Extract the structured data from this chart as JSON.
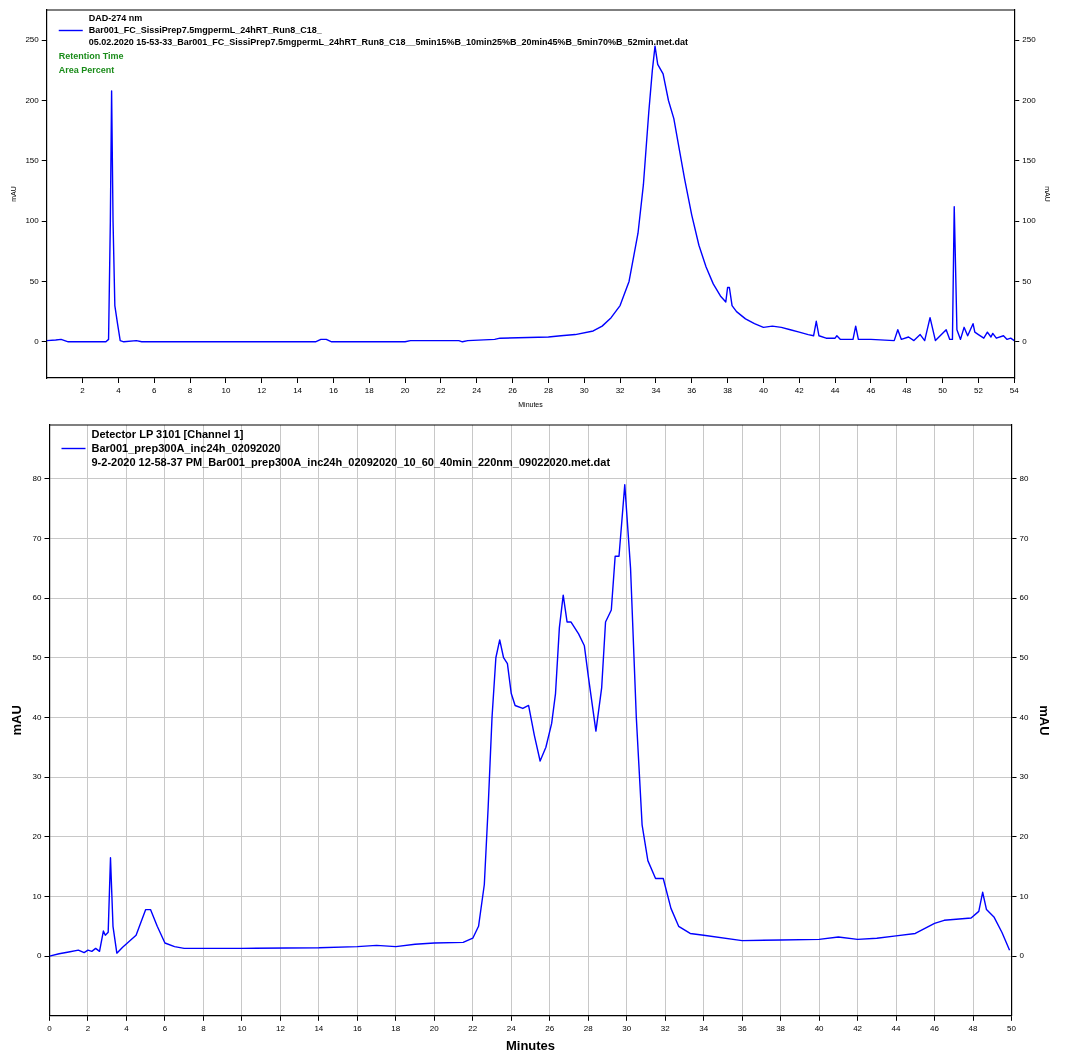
{
  "chart_data": [
    {
      "type": "line",
      "legend_title": "DAD-274 nm",
      "xlabel": "Minutes",
      "ylabel": "mAU",
      "y2label": "mAU",
      "legend": "top left",
      "marker": "none",
      "grid": false,
      "annotations": [
        "Retention Time",
        "Area Percent"
      ],
      "xlim": [
        0,
        54
      ],
      "xticks": [
        2,
        4,
        6,
        8,
        10,
        12,
        14,
        16,
        18,
        20,
        22,
        24,
        26,
        28,
        30,
        32,
        34,
        36,
        38,
        40,
        42,
        44,
        46,
        48,
        50,
        52,
        54
      ],
      "ylim": [
        -30,
        275
      ],
      "yticks": [
        0,
        50,
        100,
        150,
        200,
        250
      ],
      "y2lim": [
        -30,
        275
      ],
      "y2ticks": [
        0,
        50,
        100,
        150,
        200,
        250
      ],
      "series": [
        {
          "name": "Bar001_FC_SissiPrep7.5mgpermL_24hRT_Run8_C18_\n05.02.2020 15-53-33_Bar001_FC_SissiPrep7.5mgpermL_24hRT_Run8_C18__5min15%B_10min25%B_20min45%B_5min70%B_52min.met.dat",
          "color": "#0000ff",
          "x": [
            0,
            0.5,
            0.8,
            1.2,
            3.3,
            3.45,
            3.55,
            3.62,
            3.7,
            3.8,
            3.95,
            4.1,
            4.3,
            5,
            5.3,
            15,
            15.3,
            15.6,
            15.9,
            20,
            20.3,
            23,
            23.2,
            23.5,
            25,
            25.3,
            28,
            28.7,
            29.5,
            30.5,
            31,
            31.5,
            32,
            32.5,
            33,
            33.3,
            33.6,
            33.8,
            33.95,
            34.1,
            34.4,
            34.7,
            35,
            35.3,
            35.6,
            36,
            36.4,
            36.8,
            37.2,
            37.6,
            37.9,
            38,
            38.1,
            38.25,
            38.5,
            39,
            39.5,
            40,
            40.5,
            41,
            41.5,
            42,
            42.5,
            42.8,
            42.95,
            43.1,
            43.5,
            44,
            44.1,
            44.3,
            45,
            45.15,
            45.3,
            46,
            47.3,
            47.5,
            47.7,
            48.1,
            48.4,
            48.75,
            49,
            49.3,
            49.6,
            50.2,
            50.4,
            50.55,
            50.65,
            50.8,
            51,
            51.2,
            51.4,
            51.7,
            51.8,
            52,
            52.3,
            52.5,
            52.7,
            52.8,
            53,
            53.4,
            53.6,
            53.8,
            54
          ],
          "values": [
            1,
            1.5,
            2,
            0,
            0,
            2,
            100,
            208,
            100,
            30,
            15,
            1,
            0,
            1,
            0,
            0,
            2,
            2,
            0,
            0,
            1,
            1,
            0,
            1,
            2,
            3,
            4,
            5,
            6,
            9,
            13,
            20,
            30,
            50,
            90,
            130,
            190,
            225,
            245,
            230,
            222,
            200,
            185,
            160,
            135,
            105,
            80,
            62,
            48,
            38,
            33,
            45,
            45,
            30,
            25,
            19,
            15,
            12,
            13,
            12,
            10,
            8,
            6,
            5,
            17,
            5,
            3,
            3,
            5,
            2,
            2,
            13,
            2,
            2,
            1,
            10,
            2,
            4,
            1,
            6,
            1,
            20,
            1,
            10,
            2,
            2,
            112,
            10,
            2,
            12,
            5,
            15,
            8,
            6,
            3,
            8,
            4,
            7,
            3,
            5,
            2,
            3,
            1
          ]
        }
      ]
    },
    {
      "type": "line",
      "legend_title": "Detector LP 3101 [Channel 1]",
      "xlabel": "Minutes",
      "ylabel": "mAU",
      "y2label": "mAU",
      "legend": "top left",
      "marker": "none",
      "grid": true,
      "xlim": [
        0,
        50
      ],
      "xticks": [
        0,
        2,
        4,
        6,
        8,
        10,
        12,
        14,
        16,
        18,
        20,
        22,
        24,
        26,
        28,
        30,
        32,
        34,
        36,
        38,
        40,
        42,
        44,
        46,
        48,
        50
      ],
      "ylim": [
        -10,
        89
      ],
      "yticks": [
        0,
        10,
        20,
        30,
        40,
        50,
        60,
        70,
        80
      ],
      "y2lim": [
        -10,
        89
      ],
      "y2ticks": [
        0,
        10,
        20,
        30,
        40,
        50,
        60,
        70,
        80
      ],
      "series": [
        {
          "name": "Bar001_prep300A_inc24h_02092020\n9-2-2020 12-58-37 PM_Bar001_prep300A_inc24h_02092020_10_60_40min_220nm_09022020.met.dat",
          "color": "#0000ff",
          "x": [
            0,
            0.5,
            1,
            1.5,
            1.8,
            2,
            2.2,
            2.4,
            2.6,
            2.8,
            2.9,
            3.05,
            3.17,
            3.3,
            3.5,
            3.8,
            4.5,
            5,
            5.25,
            5.6,
            6,
            6.5,
            7,
            10,
            14,
            16,
            17,
            18,
            19,
            20,
            21.5,
            22,
            22.3,
            22.6,
            22.8,
            23,
            23.2,
            23.4,
            23.6,
            23.8,
            24,
            24.2,
            24.6,
            24.9,
            25.2,
            25.5,
            25.8,
            26.1,
            26.3,
            26.5,
            26.7,
            26.9,
            27.1,
            27.5,
            27.8,
            28,
            28.4,
            28.7,
            28.9,
            29.2,
            29.4,
            29.6,
            29.9,
            30.2,
            30.5,
            30.8,
            31.1,
            31.5,
            31.9,
            32.3,
            32.7,
            33.3,
            34,
            36,
            38,
            40,
            41,
            42,
            43,
            44,
            45,
            46,
            46.5,
            47.9,
            48.3,
            48.5,
            48.7,
            49.1,
            49.5,
            49.9
          ],
          "values": [
            0,
            0.4,
            0.7,
            1,
            0.6,
            1,
            0.8,
            1.3,
            0.8,
            4.2,
            3.5,
            4,
            16.5,
            5,
            0.5,
            1.5,
            3.5,
            7.8,
            7.8,
            5,
            2.2,
            1.6,
            1.3,
            1.3,
            1.4,
            1.6,
            1.8,
            1.6,
            2,
            2.2,
            2.3,
            3,
            5,
            12,
            25,
            40,
            50,
            53,
            50,
            49,
            44,
            42,
            41.5,
            42,
            37,
            32.7,
            35,
            39,
            44,
            55,
            60.5,
            56,
            56,
            54,
            52,
            47,
            37.7,
            45,
            56,
            58,
            67,
            67,
            79,
            65,
            40,
            22,
            16,
            13,
            13,
            8,
            5,
            3.8,
            3.5,
            2.6,
            2.7,
            2.8,
            3.2,
            2.8,
            3,
            3.4,
            3.8,
            5.5,
            6,
            6.4,
            7.5,
            10.7,
            7.8,
            6.5,
            4,
            1
          ]
        }
      ]
    }
  ]
}
